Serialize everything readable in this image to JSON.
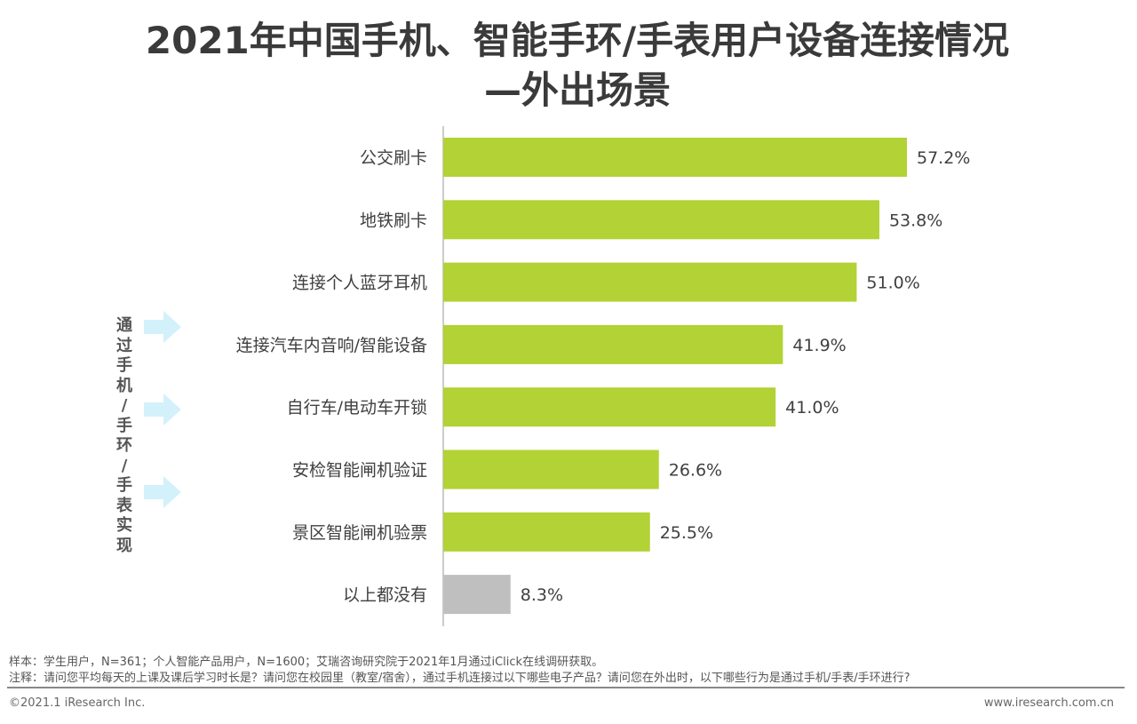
{
  "chart_data": {
    "type": "bar",
    "orientation": "horizontal",
    "title": "2021年中国手机、智能手环/手表用户设备连接情况",
    "subtitle": "—外出场景",
    "categories": [
      "公交刷卡",
      "地铁刷卡",
      "连接个人蓝牙耳机",
      "连接汽车内音响/智能设备",
      "自行车/电动车开锁",
      "安检智能闸机验证",
      "景区智能闸机验票",
      "以上都没有"
    ],
    "values": [
      57.2,
      53.8,
      51.0,
      41.9,
      41.0,
      26.6,
      25.5,
      8.3
    ],
    "labels": [
      "57.2%",
      "53.8%",
      "51.0%",
      "41.9%",
      "41.0%",
      "26.6%",
      "25.5%",
      "8.3%"
    ],
    "colors": [
      "#b2d235",
      "#b2d235",
      "#b2d235",
      "#b2d235",
      "#b2d235",
      "#b2d235",
      "#b2d235",
      "#bfbfbf"
    ],
    "xlim": [
      0,
      60
    ],
    "grid": false
  },
  "side_label": "通过手机/手环/手表实现",
  "footer": {
    "sample": "样本：学生用户，N=361；个人智能产品用户，N=1600；艾瑞咨询研究院于2021年1月通过iClick在线调研获取。",
    "note": "注释：请问您平均每天的上课及课后学习时长是？请问您在校园里（教室/宿舍），通过手机连接过以下哪些电子产品？请问您在外出时，以下哪些行为是通过手机/手表/手环进行?",
    "copyright": "©2021.1 iResearch Inc.",
    "url": "www.iresearch.com.cn"
  }
}
